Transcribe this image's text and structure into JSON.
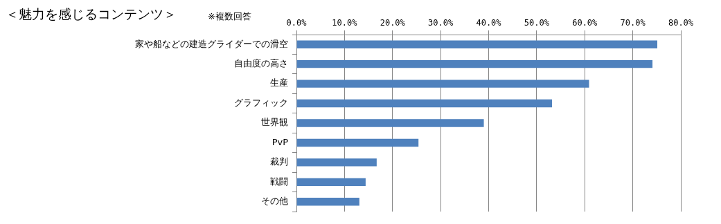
{
  "chart_data": {
    "type": "bar",
    "orientation": "horizontal",
    "title": "＜魅力を感じるコンテンツ＞",
    "subtitle": "※複数回答",
    "categories": [
      "家や船などの建造グライダーでの滑空",
      "自由度の高さ",
      "生産",
      "グラフィック",
      "世界観",
      "PvP",
      "裁判",
      "戦闘",
      "その他"
    ],
    "values": [
      75.1,
      74.1,
      60.9,
      53.2,
      39.0,
      25.4,
      16.7,
      14.4,
      13.1
    ],
    "color": "#4f81bd",
    "xlim": [
      0,
      80
    ],
    "xticks": [
      {
        "value": 0,
        "label": "0.0%"
      },
      {
        "value": 10,
        "label": "10.0%"
      },
      {
        "value": 20,
        "label": "20.0%"
      },
      {
        "value": 30,
        "label": "30.0%"
      },
      {
        "value": 40,
        "label": "40.0%"
      },
      {
        "value": 50,
        "label": "50.0%"
      },
      {
        "value": 60,
        "label": "60.0%"
      },
      {
        "value": 70,
        "label": "70.0%"
      },
      {
        "value": 80,
        "label": "80.0%"
      }
    ],
    "grid": "x",
    "legend": false
  }
}
